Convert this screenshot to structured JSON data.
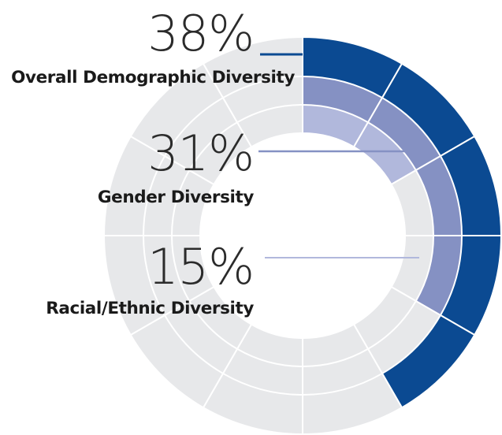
{
  "chart_data": {
    "type": "radial-bar",
    "segments_per_ring": 12,
    "series": [
      {
        "name": "Overall Demographic Diversity",
        "value": 38,
        "value_label": "38%",
        "color": "#0b4a92"
      },
      {
        "name": "Gender Diversity",
        "value": 31,
        "value_label": "31%",
        "color": "#8591c3"
      },
      {
        "name": "Racial/Ethnic Diversity",
        "value": 15,
        "value_label": "15%",
        "color": "#b1b8dc"
      }
    ],
    "background_color": "#e7e8ea"
  }
}
